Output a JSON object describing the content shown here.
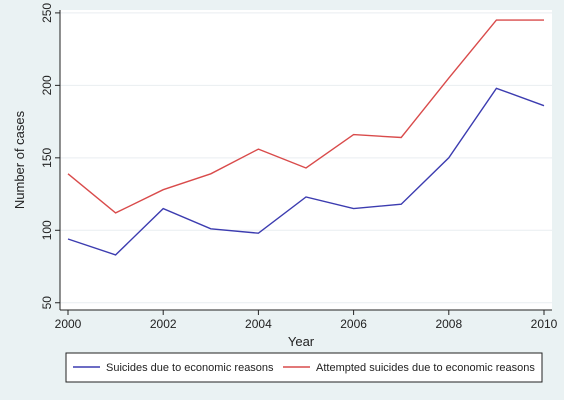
{
  "chart_data": {
    "type": "line",
    "title": "",
    "xlabel": "Year",
    "ylabel": "Number of cases",
    "x": [
      2000,
      2001,
      2002,
      2003,
      2004,
      2005,
      2006,
      2007,
      2008,
      2009,
      2010
    ],
    "xticks": [
      2000,
      2002,
      2004,
      2006,
      2008,
      2010
    ],
    "yticks": [
      50,
      100,
      150,
      200,
      250
    ],
    "xlim": [
      2000,
      2010
    ],
    "ylim": [
      45,
      252
    ],
    "grid": true,
    "legend_position": "bottom",
    "series": [
      {
        "name": "Suicides due to economic reasons",
        "color": "#3c3cb0",
        "values": [
          94,
          83,
          115,
          101,
          98,
          123,
          115,
          118,
          150,
          198,
          186
        ]
      },
      {
        "name": "Attempted suicides due to economic reasons",
        "color": "#d94b4b",
        "values": [
          139,
          112,
          128,
          139,
          156,
          143,
          166,
          164,
          205,
          245,
          245
        ]
      }
    ]
  },
  "colors": {
    "background": "#eaf2f3",
    "plot_background": "#ffffff",
    "grid": "#e9eef1"
  }
}
